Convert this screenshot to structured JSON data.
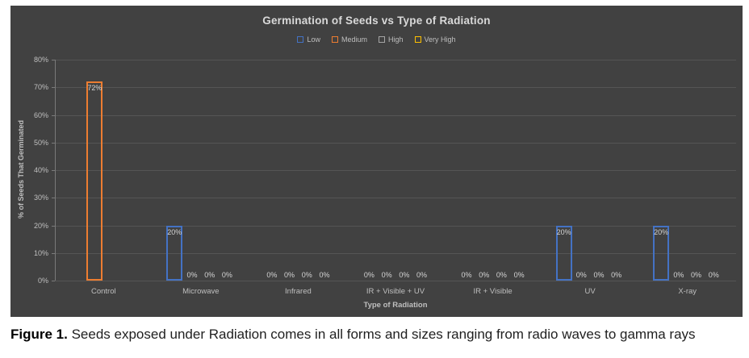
{
  "figure": {
    "panel_bg": "#414141",
    "caption": {
      "label": "Figure 1.",
      "text": "Seeds exposed under Radiation comes in all forms and sizes ranging from radio waves to gamma rays"
    }
  },
  "chart_data": {
    "type": "bar",
    "title": "Germination of Seeds vs Type of Radiation",
    "xlabel": "Type of Radiation",
    "ylabel": "% of Seeds That Germinated",
    "ylim": [
      0,
      80
    ],
    "ytick_labels": [
      "0%",
      "10%",
      "20%",
      "30%",
      "40%",
      "50%",
      "60%",
      "70%",
      "80%"
    ],
    "categories": [
      "Control",
      "Microwave",
      "Infrared",
      "IR + Visible + UV",
      "IR + Visible",
      "UV",
      "X-ray"
    ],
    "series": [
      {
        "name": "Low",
        "color": "#4472C4",
        "values": [
          null,
          20,
          0,
          0,
          0,
          20,
          20
        ]
      },
      {
        "name": "Medium",
        "color": "#ED7D31",
        "values": [
          72,
          0,
          0,
          0,
          0,
          0,
          0
        ]
      },
      {
        "name": "High",
        "color": "#A5A5A5",
        "values": [
          null,
          0,
          0,
          0,
          0,
          0,
          0
        ]
      },
      {
        "name": "Very High",
        "color": "#FFC000",
        "values": [
          null,
          0,
          0,
          0,
          0,
          0,
          0
        ]
      }
    ],
    "data_label_suffix": "%",
    "bar_style": "outline",
    "grid": true,
    "legend_position": "top",
    "colors": {
      "gridline": "#555555",
      "axis_line": "#7a7a7a",
      "tick_text": "#bfbfbf",
      "title_text": "#d9d9d9",
      "data_label_text": "#d4d4d4"
    }
  }
}
